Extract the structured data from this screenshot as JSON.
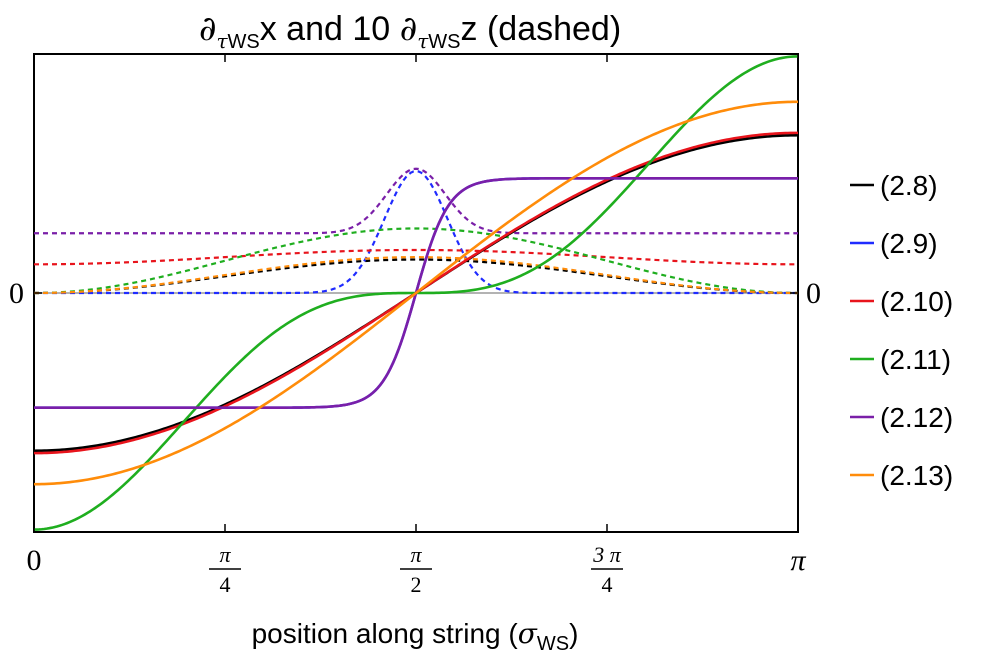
{
  "chart_data": {
    "type": "line",
    "title": {
      "prefix": "∂",
      "sub": "τ",
      "sub2": "WS",
      "mid": "x and 10 ",
      "prefix2": "∂",
      "sub3": "τ",
      "sub4": "WS",
      "suffix": "z (dashed)"
    },
    "xlabel": {
      "main": "position along string (",
      "sigma": "σ",
      "sub": "WS",
      "close": ")"
    },
    "xlim": [
      0,
      3.14159
    ],
    "ylim": [
      -1.0,
      1.0
    ],
    "x_ticks": [
      {
        "value": 0,
        "num": "0",
        "den": ""
      },
      {
        "value": 0.7854,
        "num": "π",
        "den": "4"
      },
      {
        "value": 1.5708,
        "num": "π",
        "den": "2"
      },
      {
        "value": 2.3562,
        "num": "3 π",
        "den": "4"
      },
      {
        "value": 3.14159,
        "num": "π",
        "den": ""
      }
    ],
    "y_ticks": [
      {
        "value": 0,
        "left": "0",
        "right": "0"
      }
    ],
    "grid": false,
    "legend_position": "right",
    "series": [
      {
        "name": "(2.8)",
        "color": "#000000",
        "solid": {
          "kind": "cos",
          "amp": 0.66
        },
        "dashed": {
          "kind": "sin2",
          "amp": 0.14,
          "offset": 0
        }
      },
      {
        "name": "(2.9)",
        "color": "#1f2bff",
        "solid": {
          "kind": "tanh",
          "amp": 0.48,
          "k": 7.5
        },
        "dashed": {
          "kind": "gauss",
          "amp": 0.51,
          "offset": 0,
          "w": 0.13
        }
      },
      {
        "name": "(2.10)",
        "color": "#e8141c",
        "solid": {
          "kind": "cos",
          "amp": 0.67
        },
        "dashed": {
          "kind": "sin2",
          "amp": 0.18,
          "offset": 0.12
        }
      },
      {
        "name": "(2.11)",
        "color": "#1fae1f",
        "solid": {
          "kind": "cos3",
          "amp": 0.99
        },
        "dashed": {
          "kind": "sin2",
          "amp": 0.27,
          "offset": 0
        }
      },
      {
        "name": "(2.12)",
        "color": "#7a1fa8",
        "solid": {
          "kind": "tanh",
          "amp": 0.48,
          "k": 7.5
        },
        "dashed": {
          "kind": "gauss",
          "amp": 0.52,
          "offset": 0.25,
          "w": 0.12
        }
      },
      {
        "name": "(2.13)",
        "color": "#ff8c0a",
        "solid": {
          "kind": "cos",
          "amp": 0.8
        },
        "dashed": {
          "kind": "sin2",
          "amp": 0.15,
          "offset": 0
        }
      }
    ]
  }
}
